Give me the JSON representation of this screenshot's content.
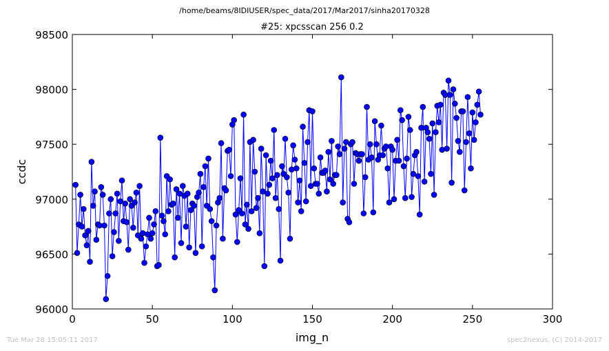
{
  "chart_data": {
    "type": "line",
    "suptitle": "/home/beams/8IDIUSER/spec_data/2017/Mar2017/sinha20170328",
    "title": "#25: xpcsscan 256 0.2",
    "xlabel": "img_n",
    "ylabel": "ccdc",
    "xlim": [
      0,
      300
    ],
    "ylim": [
      96000,
      98500
    ],
    "xticks": [
      0,
      50,
      100,
      150,
      200,
      250,
      300
    ],
    "yticks": [
      96000,
      96500,
      97000,
      97500,
      98000,
      98500
    ],
    "grid": false,
    "marker": "circle",
    "color": "#0000ff",
    "x_start": 2,
    "x_step": 1,
    "y": [
      97130,
      96510,
      96770,
      97040,
      96750,
      96910,
      96670,
      96580,
      96710,
      96430,
      97340,
      96940,
      97070,
      96630,
      96770,
      96760,
      97110,
      97040,
      96760,
      96090,
      96300,
      96870,
      97000,
      96480,
      96700,
      96870,
      97050,
      96620,
      96980,
      97170,
      96800,
      96960,
      96790,
      96540,
      97000,
      96940,
      96740,
      96970,
      97060,
      96670,
      97120,
      96640,
      96690,
      96420,
      96570,
      96680,
      96830,
      96640,
      96690,
      96770,
      96890,
      96390,
      96400,
      97560,
      96850,
      96800,
      96680,
      97210,
      96890,
      97180,
      96950,
      96960,
      96470,
      97090,
      96830,
      97050,
      96600,
      97120,
      97030,
      96750,
      97050,
      96560,
      96900,
      96960,
      96940,
      96510,
      97020,
      97060,
      97230,
      96570,
      97110,
      97300,
      96940,
      97370,
      96910,
      96800,
      96470,
      96170,
      96760,
      96970,
      97010,
      97510,
      96640,
      97100,
      97080,
      97440,
      97450,
      97210,
      97680,
      97720,
      96860,
      96610,
      96900,
      97190,
      96870,
      97770,
      96770,
      96950,
      96730,
      97520,
      96890,
      97540,
      97250,
      96920,
      97010,
      96690,
      97460,
      97070,
      96390,
      97400,
      97050,
      97130,
      97350,
      97190,
      97630,
      97010,
      97220,
      96910,
      96440,
      97300,
      97230,
      97550,
      97200,
      97060,
      96640,
      97270,
      97490,
      97360,
      97280,
      96970,
      97170,
      96890,
      97660,
      97330,
      96980,
      97520,
      97810,
      97120,
      97800,
      97280,
      97140,
      97140,
      97050,
      97380,
      97240,
      97240,
      97260,
      97070,
      97430,
      97180,
      97530,
      97140,
      97220,
      97220,
      97480,
      97410,
      98110,
      96970,
      97460,
      97520,
      96820,
      96790,
      97500,
      97520,
      97140,
      97420,
      97410,
      97350,
      97410,
      97410,
      96870,
      97200,
      97840,
      97360,
      97500,
      97380,
      96880,
      97710,
      97500,
      97360,
      97400,
      97670,
      97400,
      97460,
      97480,
      97280,
      96970,
      97480,
      97450,
      97000,
      97350,
      97540,
      97350,
      97810,
      97720,
      97300,
      97010,
      97370,
      97750,
      97630,
      97020,
      97230,
      97400,
      97430,
      97210,
      96860,
      97650,
      97840,
      97160,
      97650,
      97610,
      97550,
      97230,
      97690,
      97040,
      97610,
      97850,
      97700,
      97860,
      97450,
      97970,
      97950,
      97460,
      98080,
      97950,
      97150,
      98000,
      97870,
      97740,
      97530,
      97430,
      97800,
      97800,
      97080,
      97520,
      97930,
      97600,
      97280,
      97790,
      97540,
      97700,
      97860,
      97980,
      97770
    ]
  },
  "footer": {
    "left": "Tue Mar 28 15:05:11 2017",
    "right": "spec2nexus, (C) 2014-2017"
  }
}
